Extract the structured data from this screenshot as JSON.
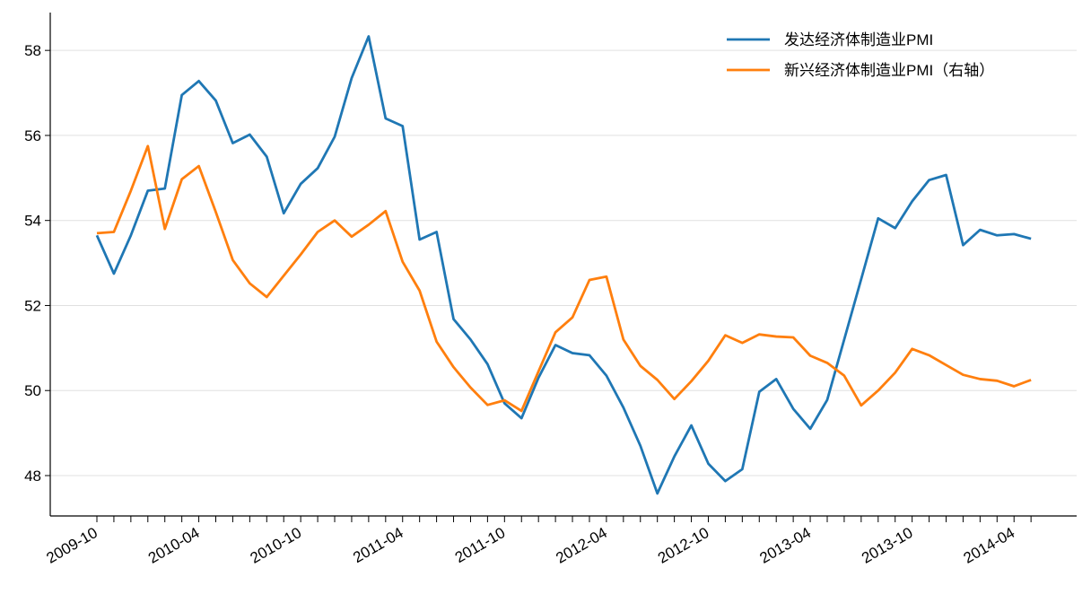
{
  "chart_data": {
    "type": "line",
    "categories": [
      "2009-10",
      null,
      null,
      null,
      null,
      null,
      "2010-04",
      null,
      null,
      null,
      null,
      null,
      "2010-10",
      null,
      null,
      null,
      null,
      null,
      "2011-04",
      null,
      null,
      null,
      null,
      null,
      "2011-10",
      null,
      null,
      null,
      null,
      null,
      "2012-04",
      null,
      null,
      null,
      null,
      null,
      "2012-10",
      null,
      null,
      null,
      null,
      null,
      "2013-04",
      null,
      null,
      null,
      null,
      null,
      "2013-10",
      null,
      null,
      null,
      null,
      null,
      "2014-04",
      null
    ],
    "series": [
      {
        "name": "发达经济体制造业PMI",
        "color": "#1f77b4",
        "values": [
          53.65,
          52.75,
          53.65,
          54.7,
          54.75,
          56.95,
          57.28,
          56.82,
          55.82,
          56.02,
          55.5,
          54.17,
          54.86,
          55.23,
          55.97,
          57.35,
          58.33,
          56.4,
          56.22,
          53.55,
          53.73,
          51.68,
          51.2,
          50.62,
          49.7,
          49.35,
          50.3,
          51.07,
          50.88,
          50.83,
          50.35,
          49.6,
          48.7,
          47.58,
          48.45,
          49.18,
          48.28,
          47.87,
          48.15,
          49.97,
          50.27,
          49.57,
          49.1,
          49.78,
          51.2,
          52.62,
          54.05,
          53.82,
          54.45,
          54.95,
          55.07,
          53.42,
          53.78,
          53.65,
          53.68,
          53.57
        ]
      },
      {
        "name": "新兴经济体制造业PMI（右轴）",
        "color": "#ff7f0e",
        "values": [
          53.7,
          53.73,
          54.7,
          55.75,
          53.8,
          54.97,
          55.28,
          54.2,
          53.07,
          52.52,
          52.2,
          52.7,
          53.2,
          53.73,
          54.0,
          53.62,
          53.9,
          54.22,
          53.03,
          52.35,
          51.15,
          50.55,
          50.07,
          49.66,
          49.77,
          49.52,
          50.45,
          51.37,
          51.72,
          52.6,
          52.68,
          51.2,
          50.58,
          50.25,
          49.8,
          50.22,
          50.7,
          51.3,
          51.12,
          51.32,
          51.27,
          51.25,
          50.82,
          50.65,
          50.35,
          49.65,
          50.0,
          50.42,
          50.98,
          50.83,
          50.6,
          50.37,
          50.27,
          50.23,
          50.1,
          50.25
        ]
      }
    ],
    "ylim": [
      47.05,
      58.89
    ],
    "yticks": [
      48,
      50,
      52,
      54,
      56,
      58
    ],
    "grid": true,
    "legend": "upper right"
  }
}
